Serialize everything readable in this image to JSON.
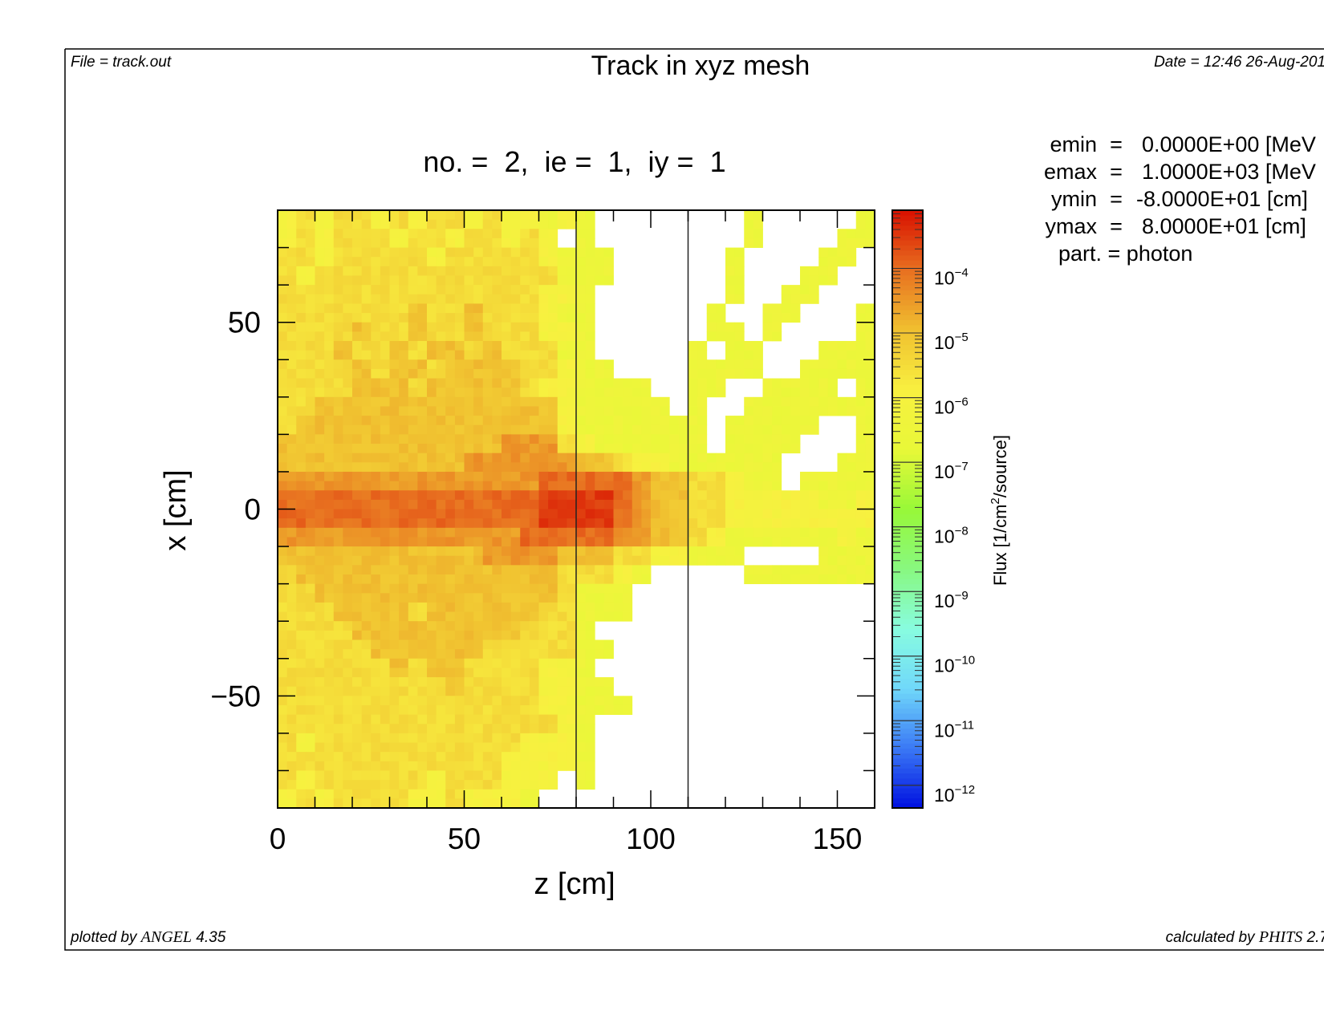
{
  "header": {
    "file": "File = track.out",
    "title": "Track in xyz mesh",
    "date": "Date = 12:46 26-Aug-201"
  },
  "footer": {
    "plotted_prefix": "plotted by ",
    "plotted_logo": "ANGEL",
    "plotted_version": " 4.35",
    "calc_prefix": "calculated by ",
    "calc_logo": "PHITS",
    "calc_version": " 2.7"
  },
  "params": [
    {
      "name": "emin",
      "eq": "=",
      "value": "0.0000E+00 [MeV"
    },
    {
      "name": "emax",
      "eq": "=",
      "value": "1.0000E+03 [MeV"
    },
    {
      "name": "ymin",
      "eq": "=",
      "value": "-8.0000E+01 [cm]"
    },
    {
      "name": "ymax",
      "eq": "=",
      "value": "8.0000E+01 [cm]"
    }
  ],
  "part_line": "part. = photon",
  "chart_data": {
    "type": "heatmap",
    "title": "no. =  2,  ie =  1,  iy =  1",
    "xlabel": "z [cm]",
    "ylabel": "x [cm]",
    "xlim": [
      0,
      160
    ],
    "ylim": [
      -80,
      80
    ],
    "xticks": [
      {
        "v": 0,
        "label": "0"
      },
      {
        "v": 50,
        "label": "50"
      },
      {
        "v": 100,
        "label": "100"
      },
      {
        "v": 150,
        "label": "150"
      }
    ],
    "yticks": [
      {
        "v": 50,
        "label": "50"
      },
      {
        "v": 0,
        "label": "0"
      },
      {
        "v": -50,
        "label": "−50"
      }
    ],
    "region_boundaries_z": [
      80,
      110
    ],
    "bin_size_cm": 5,
    "cell_code_log10_flux": {
      "b": -3.5,
      "c": -4.0,
      "d": -4.5,
      "e": -5.0,
      "f": -5.5,
      "g": -6.0,
      "h": -6.5,
      "i": -7.0,
      ".": null
    },
    "rows_top_to_bottom": [
      "gfgffgfgffgfgghgh........h.....h",
      "gfgfffgffgffgfg.h........h....hh",
      "ffgfffffgfffffghhh......h....hh.",
      "fgfffffffffffffhhh......h...hh..",
      "ffffffffffffffggh.......h..hh...",
      "fffffffeffefffghh......h..hh...h",
      "ffffeffeffefffggh......hh.h....h",
      "fffeffefeefefffhh.....h.hh...hhh",
      "ffffefeefeeeeffghh....hhhh..hhhh",
      "ffffeeefeeeeefgghhhh..hh..hhhh.h",
      "ffeeeeeeeeeeeeeghhhhh.h..hhhhhhh",
      "feeeeeeeeeeeeeeghhhhhhh.hhhhh..h",
      "eeeeeeeeeeeedddfghhhhhh.hhhh...h",
      "eeeeeeeeeeddddddeefgghhhhhh...hh",
      "ddddddddddddddcccccdeeffghh.hhhh",
      "ccccccccccccccbbbbcdeeffggggghhg",
      "ccccccccccccccbbbbcdeeffgggggggg",
      "dddddddddddddcccccddeefghhhhhhgh",
      "eeeeeeeeeeeddddeeeffgghhh....hhh",
      "feeeeeeeeeeeeeefffgh.....hhhhhhh",
      "ffeeeeeeeeeeeeefhhh.............",
      "fffeeeefeeeeeeffhhh.............",
      "ffffeeeeeeeeefffh...............",
      "fffffeeeeeefffffhh..............",
      "ffffffefeeffffggh...............",
      "fffffffffeffffgghh..............",
      "ffffffffffffffgghhh.............",
      "fffffffffffffffgh...............",
      "fgfffffffffffgggh...............",
      "ffffffffffffggggh...............",
      "fgffffffgfffggg.h...............",
      "gfgffffggfgggh.................."
    ],
    "colorbar": {
      "label_prefix": "Flux [1/cm",
      "label_sup": "2",
      "label_suffix": "/source]",
      "range_log10": [
        -12.35,
        -3.1
      ],
      "scale": "log",
      "tick_base": "10",
      "tick_exponents": [
        "−4",
        "−5",
        "−6",
        "−7",
        "−8",
        "−9",
        "−10",
        "−11",
        "−12"
      ],
      "tick_values_log10": [
        -4,
        -5,
        -6,
        -7,
        -8,
        -9,
        -10,
        -11,
        -12
      ],
      "colormap": [
        "#0010e0",
        "#3a78f5",
        "#70d8fa",
        "#88fce0",
        "#88f880",
        "#98f838",
        "#e8f838",
        "#f8f040",
        "#f0c030",
        "#e87020",
        "#d81000"
      ]
    }
  }
}
